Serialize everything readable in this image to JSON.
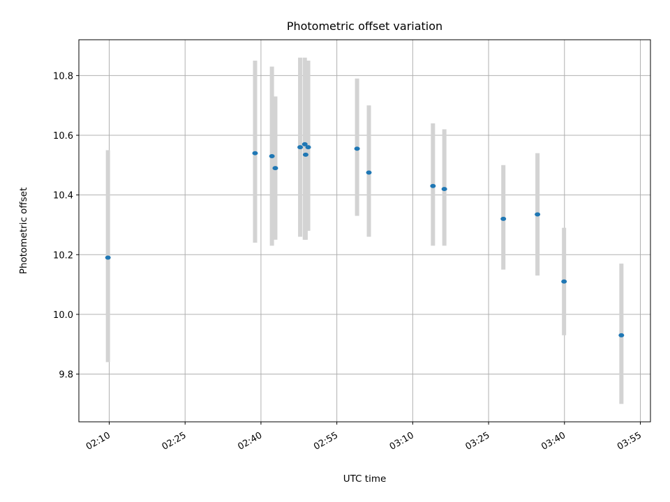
{
  "chart_data": {
    "type": "scatter",
    "title": "Photometric offset variation",
    "xlabel": "UTC time",
    "ylabel": "Photometric offset",
    "x_ticks": [
      "02:10",
      "02:25",
      "02:40",
      "02:55",
      "03:10",
      "03:25",
      "03:40",
      "03:55"
    ],
    "y_ticks": [
      "9.8",
      "10.0",
      "10.2",
      "10.4",
      "10.6",
      "10.8"
    ],
    "xlim": [
      "02:04",
      "03:57"
    ],
    "ylim": [
      9.64,
      10.92
    ],
    "grid": true,
    "error_bar_color": "#d3d3d3",
    "point_color": "#1f77b4",
    "points": [
      {
        "x": "02:09:45",
        "y": 10.19,
        "err_low": 9.84,
        "err_high": 10.55
      },
      {
        "x": "02:38:50",
        "y": 10.54,
        "err_low": 10.24,
        "err_high": 10.85
      },
      {
        "x": "02:42:10",
        "y": 10.53,
        "err_low": 10.23,
        "err_high": 10.83
      },
      {
        "x": "02:42:50",
        "y": 10.49,
        "err_low": 10.25,
        "err_high": 10.73
      },
      {
        "x": "02:47:45",
        "y": 10.56,
        "err_low": 10.26,
        "err_high": 10.86
      },
      {
        "x": "02:48:40",
        "y": 10.57,
        "err_low": 10.25,
        "err_high": 10.86
      },
      {
        "x": "02:48:50",
        "y": 10.535,
        "err_low": 10.25,
        "err_high": 10.85
      },
      {
        "x": "02:49:20",
        "y": 10.56,
        "err_low": 10.28,
        "err_high": 10.85
      },
      {
        "x": "02:59:00",
        "y": 10.555,
        "err_low": 10.33,
        "err_high": 10.79
      },
      {
        "x": "03:01:20",
        "y": 10.475,
        "err_low": 10.26,
        "err_high": 10.7
      },
      {
        "x": "03:14:00",
        "y": 10.43,
        "err_low": 10.23,
        "err_high": 10.64
      },
      {
        "x": "03:16:15",
        "y": 10.42,
        "err_low": 10.23,
        "err_high": 10.62
      },
      {
        "x": "03:27:55",
        "y": 10.32,
        "err_low": 10.15,
        "err_high": 10.5
      },
      {
        "x": "03:34:40",
        "y": 10.335,
        "err_low": 10.13,
        "err_high": 10.54
      },
      {
        "x": "03:39:55",
        "y": 10.11,
        "err_low": 9.93,
        "err_high": 10.29
      },
      {
        "x": "03:51:15",
        "y": 9.93,
        "err_low": 9.7,
        "err_high": 10.17
      }
    ]
  }
}
